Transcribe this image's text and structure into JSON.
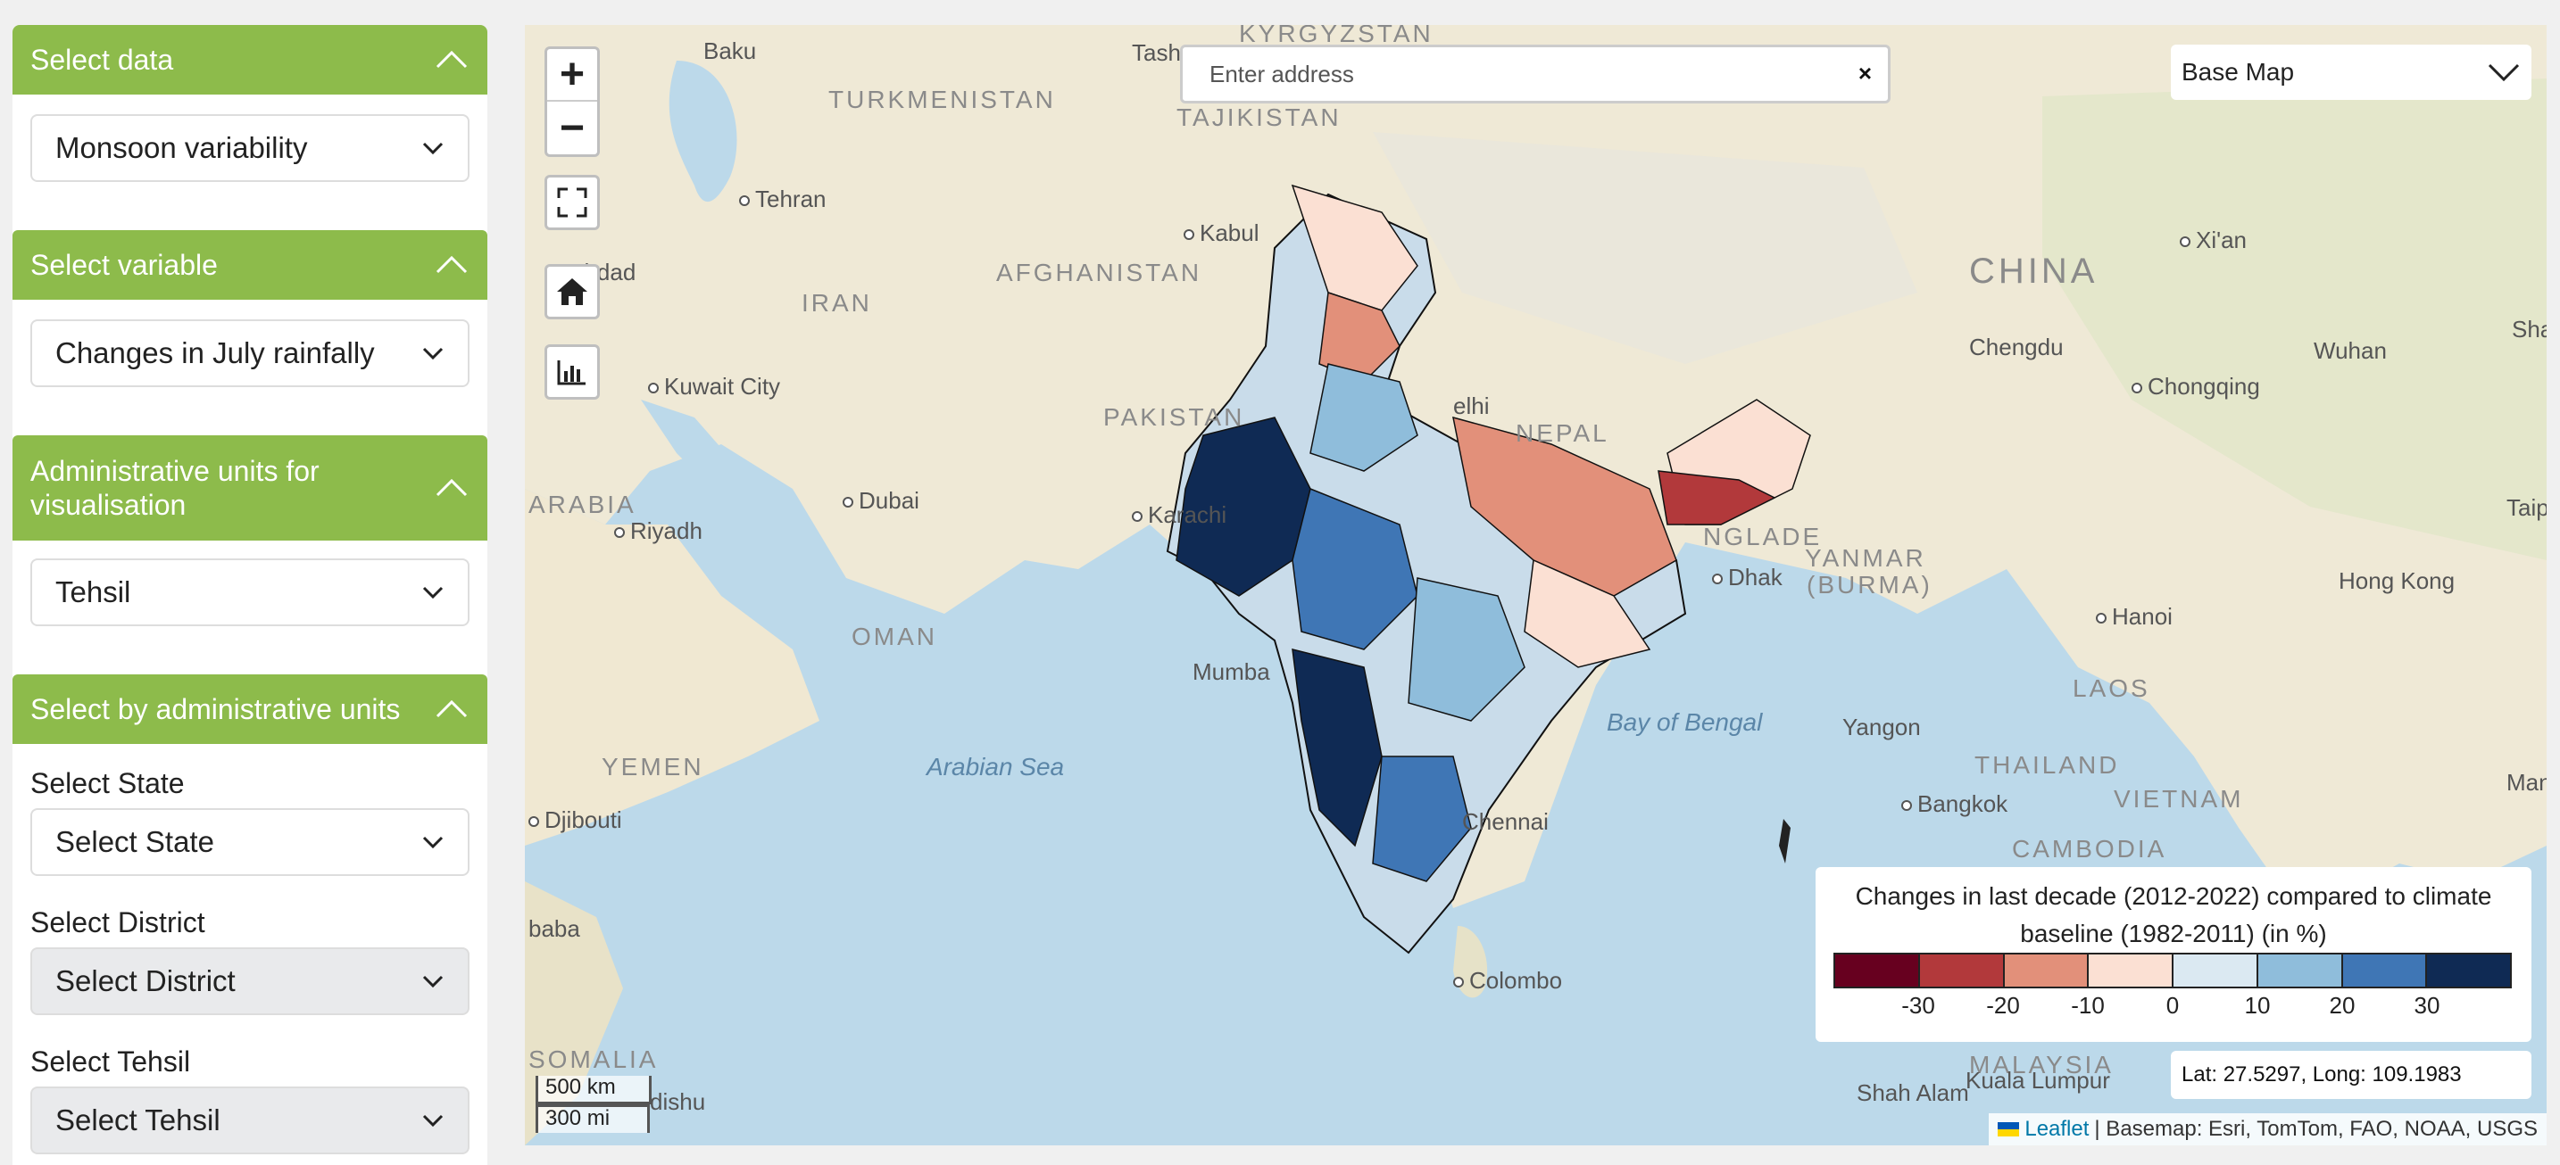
{
  "sidebar": {
    "sections": {
      "data": {
        "title": "Select data",
        "selected": "Monsoon variability"
      },
      "variable": {
        "title": "Select variable",
        "selected": "Changes in July rainfally"
      },
      "admin": {
        "title": "Administrative units for visualisation",
        "selected": "Tehsil"
      },
      "byadmin": {
        "title": "Select by administrative units",
        "state_label": "Select State",
        "state_value": "Select State",
        "district_label": "Select District",
        "district_value": "Select District",
        "tehsil_label": "Select Tehsil",
        "tehsil_value": "Select Tehsil"
      }
    }
  },
  "map": {
    "search_placeholder": "Enter address",
    "search_clear": "×",
    "basemap_label": "Base Map",
    "zoom_in": "+",
    "zoom_out": "−",
    "legend": {
      "title": "Changes in last decade (2012-2022) compared to climate baseline (1982-2011) (in %)",
      "colors": [
        "#67001f",
        "#b2393b",
        "#e2907a",
        "#fbe0d3",
        "#dbe9f2",
        "#8fbddb",
        "#3f76b5",
        "#0f2a54"
      ],
      "ticks": [
        "-30",
        "-20",
        "-10",
        "0",
        "10",
        "20",
        "30"
      ]
    },
    "coords": "Lat: 27.5297, Long: 109.1983",
    "scale_km": "500 km",
    "scale_mi": "300 mi",
    "attribution_leaflet": "Leaflet",
    "attribution_rest": "| Basemap: Esri, TomTom, FAO, NOAA, USGS",
    "labels": {
      "baku": "Baku",
      "turkmenistan": "TURKMENISTAN",
      "kyrgyzstan": "KYRGYZSTAN",
      "tashkent": "Tash",
      "tajikistan": "TAJIKISTAN",
      "tehran": "Tehran",
      "baghdad": "ghdad",
      "iran": "IRAN",
      "afghanistan": "AFGHANISTAN",
      "kabul": "Kabul",
      "kuwait": "Kuwait City",
      "pakistan": "PAKISTAN",
      "arabia": "ARABIA",
      "riyadh": "Riyadh",
      "dubai": "Dubai",
      "karachi": "Karachi",
      "oman": "OMAN",
      "delhi": "elhi",
      "nepal": "NEPAL",
      "bangladesh": "NGLADE",
      "myanmar": "YANMAR",
      "burma": "(BURMA)",
      "dhaka": "Dhak",
      "mumbai": "Mumba",
      "yemen": "YEMEN",
      "arabian_sea": "Arabian Sea",
      "bay_of_bengal": "Bay of Bengal",
      "chennai": "Chennai",
      "djibouti": "Djibouti",
      "somalia": "SOMALIA",
      "mogadishu": "dishu",
      "colombo": "Colombo",
      "china": "CHINA",
      "xian": "Xi'an",
      "chengdu": "Chengdu",
      "wuhan": "Wuhan",
      "chongqing": "Chongqing",
      "sha": "Shar",
      "taipei": "Taip",
      "hongkong": "Hong Kong",
      "hanoi": "Hanoi",
      "laos": "LAOS",
      "thailand": "THAILAND",
      "yangon": "Yangon",
      "bangkok": "Bangkok",
      "vietnam": "VIETNAM",
      "cambodia": "CAMBODIA",
      "manila": "Manil",
      "malaysia": "MALAYSIA",
      "kualalumpur": "Kuala Lumpur",
      "shahalam": "Shah Alam",
      "baba": "baba"
    }
  }
}
